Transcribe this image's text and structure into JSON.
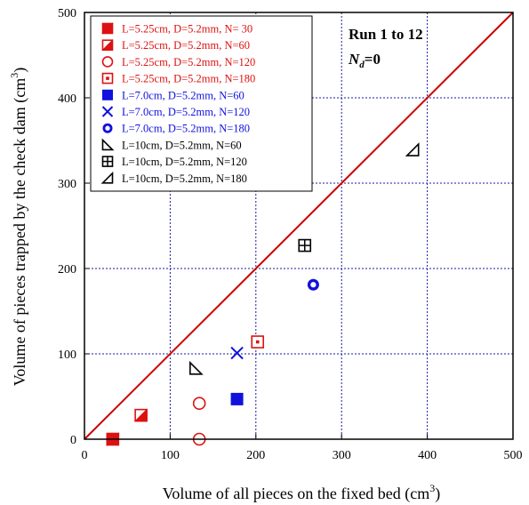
{
  "chart_data": {
    "type": "scatter",
    "xlabel": "Volume of all pieces on the fixed bed (cm",
    "xlabel_sup": "3",
    "xlabel_end": ")",
    "ylabel": "Volume of pieces trapped by the check dam (cm",
    "ylabel_sup": "3",
    "ylabel_end": ")",
    "xlim": [
      0,
      500
    ],
    "ylim": [
      0,
      500
    ],
    "x_ticks": [
      0,
      100,
      200,
      300,
      400,
      500
    ],
    "y_ticks": [
      0,
      100,
      200,
      300,
      400,
      500
    ],
    "grid": true,
    "legend_position": "top-left",
    "annotation": {
      "line1": "Run 1 to 12",
      "line2_main": "N",
      "line2_sub": "d",
      "line2_rest": "=0"
    },
    "reference_line": {
      "from": [
        0,
        0
      ],
      "to": [
        500,
        500
      ],
      "color": "#cc0000"
    },
    "series": [
      {
        "name": "L=5.25cm, D=5.2mm, N= 30",
        "marker": "half-square",
        "color": "#dd1111",
        "points": [
          [
            33,
            0
          ]
        ]
      },
      {
        "name": "L=5.25cm, D=5.2mm, N=60",
        "marker": "diag-square",
        "color": "#dd1111",
        "points": [
          [
            66,
            28
          ]
        ]
      },
      {
        "name": "L=5.25cm, D=5.2mm, N=120",
        "marker": "circle-open",
        "color": "#dd1111",
        "points": [
          [
            134,
            42
          ],
          [
            134,
            0
          ]
        ]
      },
      {
        "name": "L=5.25cm, D=5.2mm, N=180",
        "marker": "square-dot",
        "color": "#dd1111",
        "points": [
          [
            202,
            114
          ]
        ]
      },
      {
        "name": "L=7.0cm, D=5.2mm, N=60",
        "marker": "square-filled",
        "color": "#1111dd",
        "points": [
          [
            178,
            47
          ]
        ]
      },
      {
        "name": "L=7.0cm, D=5.2mm, N=120",
        "marker": "x",
        "color": "#1111dd",
        "points": [
          [
            178,
            101
          ]
        ]
      },
      {
        "name": "L=7.0cm, D=5.2mm, N=180",
        "marker": "circle-dot",
        "color": "#1111dd",
        "points": [
          [
            267,
            181
          ]
        ]
      },
      {
        "name": "L=10cm, D=5.2mm, N=60",
        "marker": "tri-lower-left",
        "color": "#000000",
        "points": [
          [
            130,
            83
          ]
        ]
      },
      {
        "name": "L=10cm, D=5.2mm, N=120",
        "marker": "square-plus",
        "color": "#000000",
        "points": [
          [
            257,
            227
          ]
        ]
      },
      {
        "name": "L=10cm, D=5.2mm, N=180",
        "marker": "tri-lower-right",
        "color": "#000000",
        "points": [
          [
            383,
            339
          ]
        ]
      }
    ]
  }
}
